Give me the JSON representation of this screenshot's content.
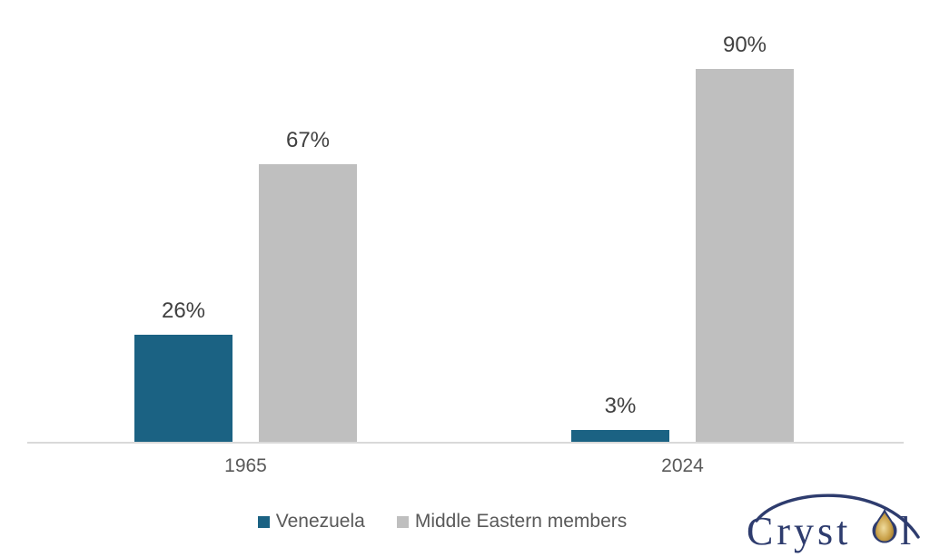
{
  "chart_data": {
    "type": "bar",
    "categories": [
      "1965",
      "2024"
    ],
    "series": [
      {
        "name": "Venezuela",
        "color": "#1b6283",
        "values": [
          26,
          3
        ],
        "labels": [
          "26%",
          "3%"
        ]
      },
      {
        "name": "Middle Eastern members",
        "color": "#bfbfbf",
        "values": [
          67,
          90
        ],
        "labels": [
          "67%",
          "90%"
        ]
      }
    ],
    "title": "",
    "xlabel": "",
    "ylabel": "",
    "ylim": [
      0,
      100
    ],
    "grid": false,
    "legend_position": "bottom",
    "value_label_format": "percent"
  },
  "legend": {
    "items": [
      {
        "label": "Venezuela",
        "color": "#1b6283"
      },
      {
        "label": "Middle Eastern members",
        "color": "#bfbfbf"
      }
    ]
  },
  "colors": {
    "venezuela_bar": "#1b6283",
    "middle_east_bar": "#bfbfbf",
    "value_label": "#404040",
    "category_label": "#595959",
    "axis_line": "#d9d9d9",
    "logo_navy": "#2e3c6e",
    "logo_gold": "#caa24a"
  },
  "logo": {
    "name": "crystol-logo",
    "text_left": "Cryst",
    "text_right": "l",
    "drop_icon": "oil-drop-icon"
  }
}
